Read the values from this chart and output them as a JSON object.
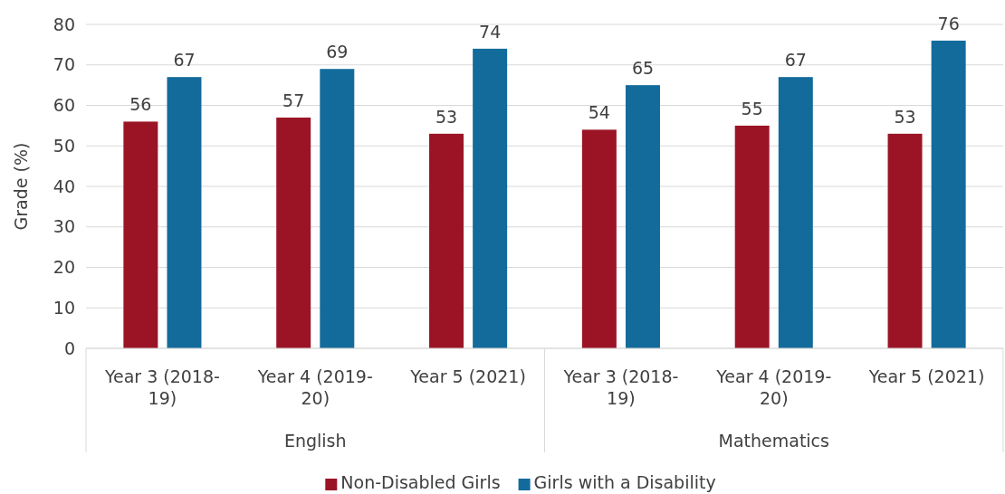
{
  "chart_data": {
    "type": "bar",
    "ylabel": "Grade (%)",
    "categories": [
      "Year 3 (2018-19)",
      "Year 4 (2019-20)",
      "Year 5 (2021)",
      "Year 3 (2018-19)",
      "Year 4 (2019-20)",
      "Year 5 (2021)"
    ],
    "series": [
      {
        "name": "Non-Disabled Girls",
        "color": "#9b1426",
        "values": [
          56,
          57,
          53,
          54,
          55,
          53
        ]
      },
      {
        "name": "Girls with a Disability",
        "color": "#136b9c",
        "values": [
          67,
          69,
          74,
          65,
          67,
          76
        ]
      }
    ],
    "annotations": [
      "English",
      "Mathematics"
    ],
    "ylim": [
      0,
      80
    ],
    "yticks": [
      0,
      10,
      20,
      30,
      40,
      50,
      60,
      70,
      80
    ],
    "grid": "y",
    "legend": "bottom",
    "data_labels": true
  }
}
